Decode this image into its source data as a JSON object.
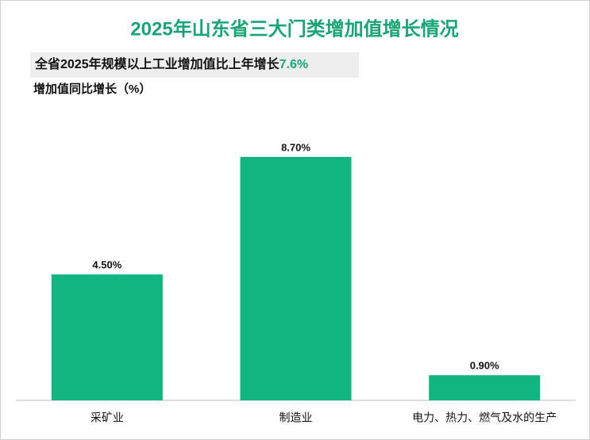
{
  "chart_data": {
    "type": "bar",
    "title": "2025年山东省三大门类增加值增长情况",
    "subtitle": "全省2025年规模以上工业增加值比上年增长",
    "subtitle_highlight": "7.6%",
    "y_label": "增加值同比增长（%）",
    "categories": [
      "采矿业",
      "制造业",
      "电力、热力、燃气及水的生产"
    ],
    "values": [
      4.5,
      8.7,
      0.9
    ],
    "value_labels": [
      "4.50%",
      "8.70%",
      "0.90%"
    ],
    "color": "#12b580",
    "ylim": [
      0,
      10
    ]
  }
}
